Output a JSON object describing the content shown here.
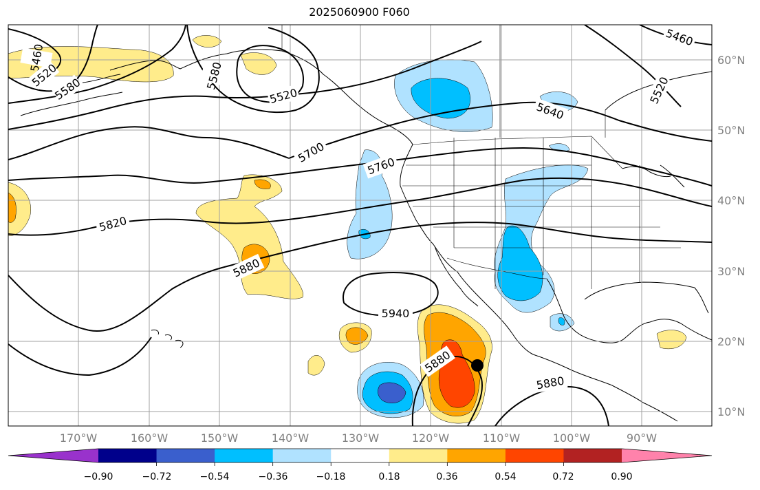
{
  "title": "2025060900 F060",
  "lon_labels": [
    "170°W",
    "160°W",
    "150°W",
    "140°W",
    "130°W",
    "120°W",
    "110°W",
    "100°W",
    "90°W"
  ],
  "lat_labels": [
    "60°N",
    "50°N",
    "40°N",
    "30°N",
    "20°N",
    "10°N"
  ],
  "colorbar": {
    "ticks": [
      "−0.90",
      "−0.72",
      "−0.54",
      "−0.36",
      "−0.18",
      "0.18",
      "0.36",
      "0.54",
      "0.72",
      "0.90"
    ],
    "colors": [
      "#9932CC",
      "#00008B",
      "#3A5FCD",
      "#00BFFF",
      "#B0E2FF",
      "#FFFFFF",
      "#FFEC8B",
      "#FFA500",
      "#FF4500",
      "#B22222",
      "#FF82AB"
    ]
  },
  "contour_labels": [
    "5460",
    "5520",
    "5580",
    "5520",
    "5580",
    "5460",
    "5520",
    "5640",
    "5700",
    "5760",
    "5820",
    "5880",
    "5940",
    "5880",
    "5880"
  ],
  "map": {
    "lon_range": [
      -180,
      -80
    ],
    "lat_range": [
      8,
      65
    ],
    "marker": "storm-center-dot"
  }
}
